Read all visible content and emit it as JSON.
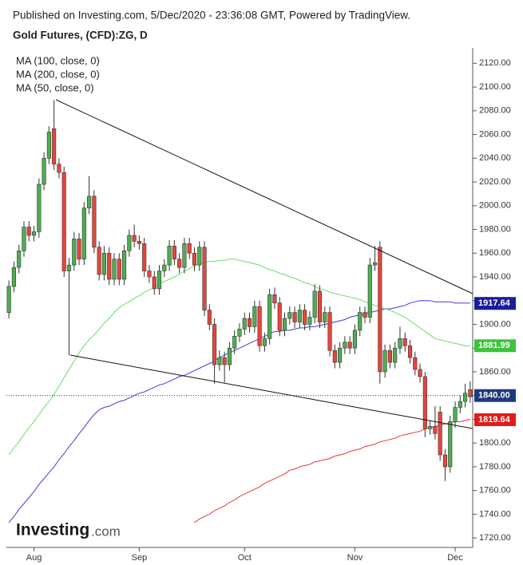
{
  "chart_data": {
    "type": "candlestick",
    "header": "Published on Investing.com, 5/Dec/2020 - 23:36:08 GMT, Powered by TradingView.",
    "title": "Gold Futures, (CFD):ZG, D",
    "logo": {
      "brand": "Investing",
      "suffix": ".com"
    },
    "categories": [
      null,
      null,
      null,
      null,
      null,
      "Aug",
      null,
      null,
      null,
      null,
      null,
      null,
      null,
      null,
      null,
      null,
      null,
      null,
      null,
      null,
      null,
      null,
      null,
      null,
      null,
      null,
      "Sep",
      null,
      null,
      null,
      null,
      null,
      null,
      null,
      null,
      null,
      null,
      null,
      null,
      null,
      null,
      null,
      null,
      null,
      null,
      null,
      null,
      "Oct",
      null,
      null,
      null,
      null,
      null,
      null,
      null,
      null,
      null,
      null,
      null,
      null,
      null,
      null,
      null,
      null,
      null,
      null,
      null,
      null,
      null,
      "Nov",
      null,
      null,
      null,
      null,
      null,
      null,
      null,
      null,
      null,
      null,
      null,
      null,
      null,
      null,
      null,
      null,
      null,
      null,
      null,
      "Dec",
      null,
      null,
      null
    ],
    "open": [
      1910,
      1932,
      1948,
      1962,
      1982,
      1975,
      1978,
      2018,
      2040,
      2065,
      2035,
      2028,
      1945,
      1950,
      1972,
      1955,
      1998,
      2008,
      1965,
      1942,
      1960,
      1938,
      1955,
      1938,
      1962,
      1975,
      1970,
      1968,
      1945,
      1940,
      1930,
      1945,
      1950,
      1966,
      1955,
      1948,
      1968,
      1960,
      1950,
      1965,
      1912,
      1900,
      1866,
      1872,
      1866,
      1880,
      1890,
      1896,
      1905,
      1898,
      1915,
      1882,
      1888,
      1925,
      1918,
      1895,
      1905,
      1910,
      1902,
      1912,
      1900,
      1906,
      1928,
      1902,
      1910,
      1878,
      1868,
      1880,
      1885,
      1880,
      1895,
      1910,
      1906,
      1950,
      1965,
      1860,
      1878,
      1868,
      1880,
      1888,
      1882,
      1872,
      1862,
      1856,
      1812,
      1814,
      1826,
      1790,
      1780,
      1818,
      1830,
      1835,
      1845
    ],
    "high": [
      1937,
      1953,
      1967,
      1987,
      1987,
      1983,
      2023,
      2045,
      2067,
      2089,
      2040,
      2033,
      1956,
      1978,
      1977,
      2003,
      2025,
      2013,
      1970,
      1966,
      1965,
      1960,
      1960,
      1967,
      1980,
      1984,
      1975,
      1973,
      1950,
      1945,
      1950,
      1955,
      1971,
      1971,
      1960,
      1973,
      1973,
      1965,
      1970,
      1970,
      1917,
      1905,
      1878,
      1877,
      1885,
      1895,
      1901,
      1910,
      1910,
      1920,
      1920,
      1893,
      1930,
      1931,
      1923,
      1910,
      1915,
      1915,
      1917,
      1917,
      1911,
      1934,
      1933,
      1915,
      1915,
      1883,
      1885,
      1890,
      1890,
      1900,
      1915,
      1915,
      1956,
      1966,
      1970,
      1883,
      1883,
      1885,
      1898,
      1893,
      1887,
      1877,
      1867,
      1860,
      1819,
      1831,
      1831,
      1795,
      1823,
      1835,
      1840,
      1850,
      1852
    ],
    "low": [
      1905,
      1927,
      1943,
      1957,
      1970,
      1970,
      1973,
      2013,
      2035,
      2030,
      2023,
      1940,
      1874,
      1945,
      1950,
      1950,
      1993,
      1960,
      1937,
      1937,
      1933,
      1933,
      1933,
      1933,
      1957,
      1965,
      1963,
      1940,
      1935,
      1925,
      1925,
      1940,
      1945,
      1950,
      1943,
      1943,
      1955,
      1945,
      1945,
      1907,
      1895,
      1850,
      1861,
      1851,
      1861,
      1875,
      1885,
      1891,
      1893,
      1893,
      1877,
      1877,
      1883,
      1913,
      1890,
      1890,
      1900,
      1897,
      1897,
      1895,
      1895,
      1901,
      1897,
      1897,
      1873,
      1863,
      1863,
      1875,
      1875,
      1875,
      1890,
      1901,
      1901,
      1945,
      1850,
      1855,
      1863,
      1863,
      1875,
      1877,
      1867,
      1857,
      1851,
      1805,
      1807,
      1803,
      1785,
      1768,
      1775,
      1813,
      1825,
      1830,
      1834
    ],
    "close": [
      1932,
      1948,
      1962,
      1982,
      1975,
      1978,
      2018,
      2040,
      2062,
      2035,
      2028,
      1945,
      1950,
      1972,
      1955,
      1998,
      2008,
      1965,
      1942,
      1960,
      1938,
      1955,
      1938,
      1962,
      1975,
      1970,
      1968,
      1945,
      1940,
      1930,
      1945,
      1950,
      1966,
      1955,
      1948,
      1968,
      1960,
      1950,
      1965,
      1912,
      1900,
      1866,
      1872,
      1866,
      1880,
      1890,
      1896,
      1905,
      1898,
      1915,
      1882,
      1888,
      1925,
      1918,
      1895,
      1905,
      1910,
      1902,
      1912,
      1900,
      1906,
      1928,
      1902,
      1910,
      1878,
      1868,
      1880,
      1885,
      1880,
      1895,
      1910,
      1906,
      1950,
      1952,
      1860,
      1878,
      1868,
      1880,
      1888,
      1882,
      1872,
      1862,
      1856,
      1812,
      1814,
      1808,
      1790,
      1780,
      1818,
      1830,
      1835,
      1842,
      1839
    ],
    "up_color": "#4caf50",
    "down_color": "#e8453c",
    "series": [
      {
        "name": "MA (100, close, 0)",
        "color": "#3d3dd8",
        "values": [
          1733,
          1738,
          1744,
          1749,
          1754,
          1759,
          1765,
          1770,
          1775,
          1780,
          1786,
          1791,
          1797,
          1802,
          1808,
          1813,
          1819,
          1824,
          1828,
          1830,
          1831,
          1833,
          1835,
          1836,
          1838,
          1840,
          1842,
          1843,
          1845,
          1847,
          1849,
          1850,
          1852,
          1854,
          1856,
          1857,
          1859,
          1861,
          1863,
          1865,
          1867,
          1869,
          1872,
          1874,
          1876,
          1878,
          1880,
          1882,
          1884,
          1886,
          1888,
          1890,
          1892,
          1894,
          1894,
          1895,
          1895,
          1896,
          1897,
          1897,
          1898,
          1898,
          1899,
          1900,
          1901,
          1902,
          1903,
          1904,
          1906,
          1907,
          1908,
          1909,
          1910,
          1911,
          1912,
          1913,
          1913,
          1914,
          1915,
          1916,
          1918,
          1919,
          1920,
          1920,
          1920,
          1919,
          1919,
          1919,
          1919,
          1918,
          1918,
          1918,
          1918
        ]
      },
      {
        "name": "MA (200, close, 0)",
        "color": "#e53935",
        "values": [
          null,
          null,
          null,
          null,
          null,
          null,
          null,
          null,
          null,
          null,
          null,
          null,
          null,
          null,
          null,
          null,
          null,
          null,
          null,
          null,
          null,
          null,
          null,
          null,
          null,
          null,
          null,
          null,
          null,
          null,
          null,
          null,
          null,
          null,
          null,
          null,
          null,
          1733,
          1736,
          1738,
          1740,
          1743,
          1745,
          1747,
          1750,
          1752,
          1755,
          1757,
          1759,
          1761,
          1763,
          1766,
          1768,
          1770,
          1772,
          1774,
          1777,
          1778,
          1780,
          1781,
          1782,
          1784,
          1785,
          1786,
          1787,
          1789,
          1790,
          1791,
          1793,
          1794,
          1795,
          1797,
          1798,
          1799,
          1801,
          1802,
          1803,
          1804,
          1806,
          1807,
          1808,
          1809,
          1810,
          1812,
          1813,
          1814,
          1815,
          1816,
          1817,
          1818,
          1818,
          1819,
          1820
        ]
      },
      {
        "name": "MA (50, close, 0)",
        "color": "#66dd66",
        "values": [
          1790,
          1796,
          1801,
          1807,
          1813,
          1818,
          1824,
          1830,
          1835,
          1841,
          1848,
          1855,
          1862,
          1869,
          1876,
          1882,
          1887,
          1891,
          1896,
          1901,
          1905,
          1910,
          1914,
          1917,
          1919,
          1922,
          1924,
          1927,
          1929,
          1931,
          1934,
          1936,
          1938,
          1940,
          1942,
          1945,
          1947,
          1949,
          1951,
          1952,
          1953,
          1953,
          1954,
          1954,
          1955,
          1955,
          1954,
          1953,
          1952,
          1951,
          1950,
          1948,
          1946,
          1945,
          1943,
          1942,
          1940,
          1939,
          1937,
          1935,
          1934,
          1932,
          1930,
          1929,
          1927,
          1926,
          1925,
          1924,
          1923,
          1922,
          1921,
          1919,
          1918,
          1916,
          1915,
          1913,
          1912,
          1910,
          1908,
          1906,
          1903,
          1900,
          1897,
          1894,
          1891,
          1888,
          1887,
          1886,
          1885,
          1884,
          1883,
          1882,
          1882
        ]
      }
    ],
    "price_labels": [
      {
        "value": 1917.64,
        "label": "1917.64",
        "color": "#1c1c9c"
      },
      {
        "value": 1881.99,
        "label": "1881.99",
        "color": "#3cc43c"
      },
      {
        "value": 1840,
        "label": "1840.00",
        "color": "#1f3a78",
        "dotted": true
      },
      {
        "value": 1819.64,
        "label": "1819.64",
        "color": "#e01b1b"
      }
    ],
    "ylim": [
      1712,
      2133
    ],
    "yticks": [
      {
        "value": 1720,
        "label": "1720.00"
      },
      {
        "value": 1740,
        "label": "1740.00"
      },
      {
        "value": 1760,
        "label": "1760.00"
      },
      {
        "value": 1780,
        "label": "1780.00"
      },
      {
        "value": 1800,
        "label": "1800.00"
      },
      {
        "value": 1820,
        "label": "1820.00"
      },
      {
        "value": 1840,
        "label": "1840.00"
      },
      {
        "value": 1860,
        "label": "1860.00"
      },
      {
        "value": 1880,
        "label": "1880.00"
      },
      {
        "value": 1900,
        "label": "1900.00"
      },
      {
        "value": 1920,
        "label": "1920.00"
      },
      {
        "value": 1940,
        "label": "1940.00"
      },
      {
        "value": 1960,
        "label": "1960.00"
      },
      {
        "value": 1980,
        "label": "1980.00"
      },
      {
        "value": 2000,
        "label": "2000.00"
      },
      {
        "value": 2020,
        "label": "2020.00"
      },
      {
        "value": 2040,
        "label": "2040.00"
      },
      {
        "value": 2060,
        "label": "2060.00"
      },
      {
        "value": 2080,
        "label": "2080.00"
      },
      {
        "value": 2100,
        "label": "2100.00"
      },
      {
        "value": 2120,
        "label": "2120.00"
      }
    ],
    "grid": false
  }
}
